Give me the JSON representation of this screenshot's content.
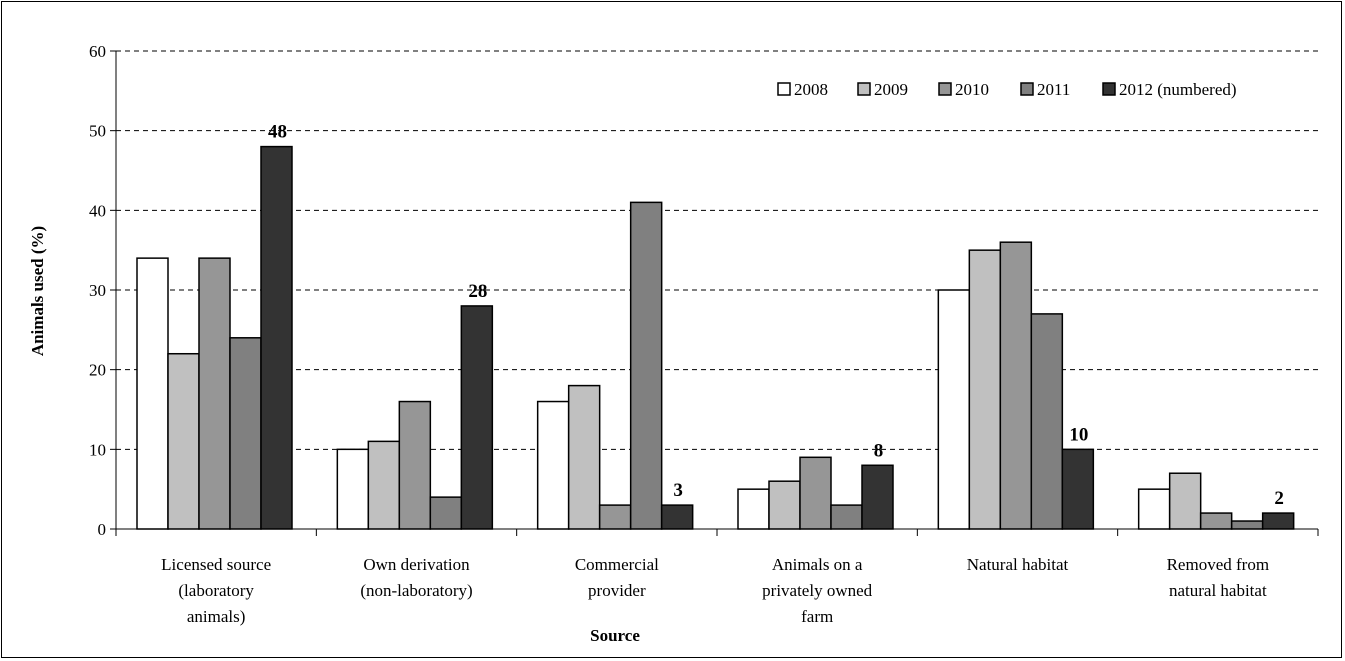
{
  "chart_data": {
    "type": "bar",
    "xlabel": "Source",
    "ylabel": "Animals used (%)",
    "ylim": [
      0,
      60
    ],
    "yticks": [
      0,
      10,
      20,
      30,
      40,
      50,
      60
    ],
    "grid": true,
    "legend_position": "top-right",
    "categories": [
      [
        "Licensed source",
        "(laboratory",
        "animals)"
      ],
      [
        "Own derivation",
        "(non-laboratory)"
      ],
      [
        "Commercial",
        "provider"
      ],
      [
        "Animals on a",
        "privately owned",
        "farm"
      ],
      [
        "Natural habitat"
      ],
      [
        "Removed from",
        "natural habitat"
      ]
    ],
    "series": [
      {
        "name": "2008",
        "color": "#ffffff",
        "values": [
          34,
          10,
          16,
          5,
          30,
          5
        ]
      },
      {
        "name": "2009",
        "color": "#c0c0c0",
        "values": [
          22,
          11,
          18,
          6,
          35,
          7
        ]
      },
      {
        "name": "2010",
        "color": "#969696",
        "values": [
          34,
          16,
          3,
          9,
          36,
          2
        ]
      },
      {
        "name": "2011",
        "color": "#808080",
        "values": [
          24,
          4,
          41,
          3,
          27,
          1
        ]
      },
      {
        "name": "2012 (numbered)",
        "color": "#333333",
        "values": [
          48,
          28,
          3,
          8,
          10,
          2
        ],
        "data_labels": [
          "48",
          "28",
          "3",
          "8",
          "10",
          "2"
        ]
      }
    ]
  }
}
